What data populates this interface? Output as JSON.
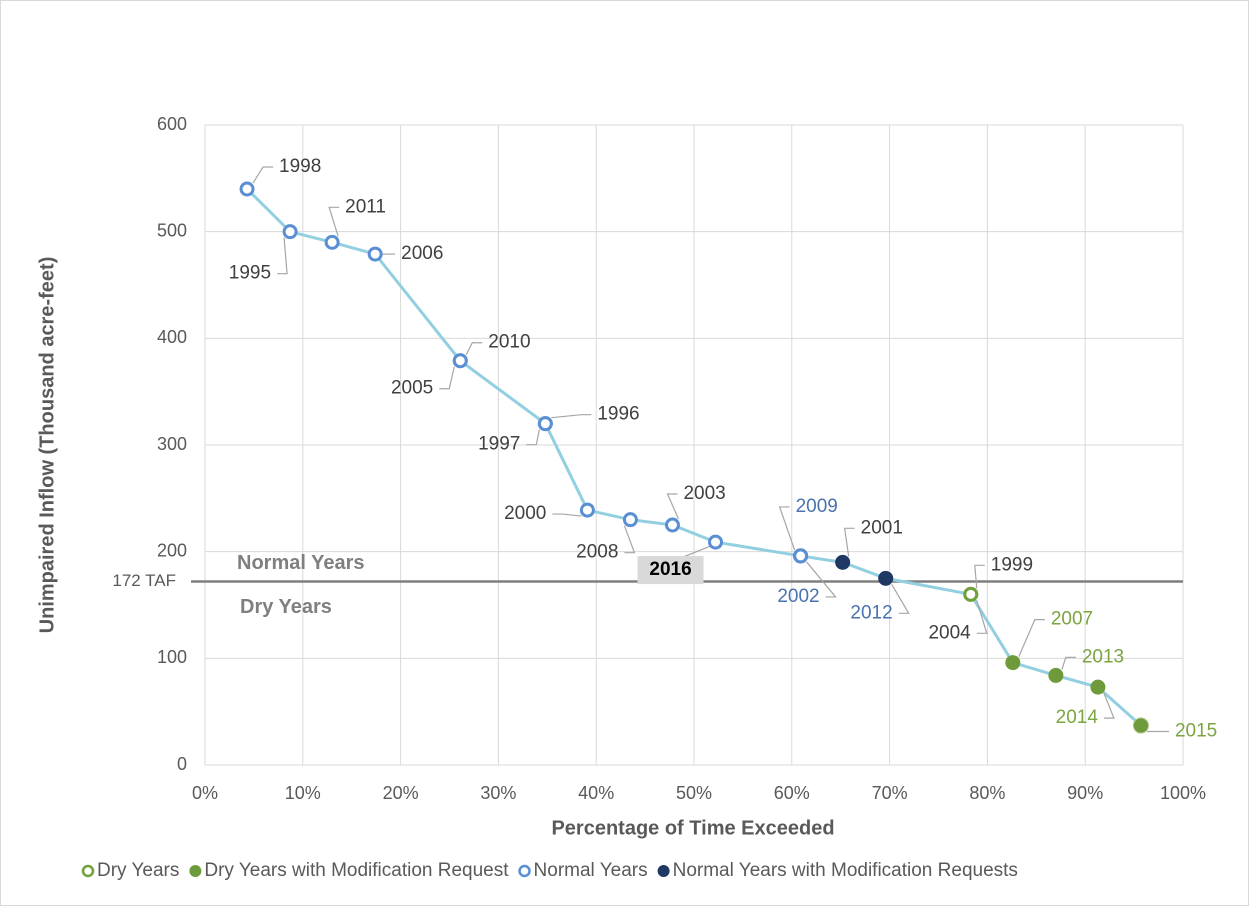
{
  "chart_data": {
    "type": "scatter-line",
    "xlabel": "Percentage of Time Exceeded",
    "ylabel": "Unimpaired Inflow (Thousand  acre-feet)",
    "xlim": [
      0,
      100
    ],
    "ylim": [
      0,
      600
    ],
    "xticks": [
      {
        "value": 0,
        "label": "0%"
      },
      {
        "value": 10,
        "label": "10%"
      },
      {
        "value": 20,
        "label": "20%"
      },
      {
        "value": 30,
        "label": "30%"
      },
      {
        "value": 40,
        "label": "40%"
      },
      {
        "value": 50,
        "label": "50%"
      },
      {
        "value": 60,
        "label": "60%"
      },
      {
        "value": 70,
        "label": "70%"
      },
      {
        "value": 80,
        "label": "80%"
      },
      {
        "value": 90,
        "label": "90%"
      },
      {
        "value": 100,
        "label": "100%"
      }
    ],
    "yticks": [
      0,
      100,
      200,
      300,
      400,
      500,
      600
    ],
    "grid": true,
    "line_color": "#92cfe0",
    "legend": [
      {
        "name": "Dry Years",
        "color": "#70a03c",
        "filled": false
      },
      {
        "name": "Dry Years with Modification Request",
        "color": "#6f9a3b",
        "filled": true
      },
      {
        "name": "Normal Years",
        "color": "#5b8fd4",
        "filled": false
      },
      {
        "name": "Normal Years with Modification Requests",
        "color": "#1f3864",
        "filled": true
      }
    ],
    "labels": [
      "1998",
      "1995",
      "2011",
      "2006",
      "2010",
      "2005",
      "1996",
      "1997",
      "2000",
      "2008",
      "2003",
      "2016",
      "2009",
      "2002",
      "2001",
      "2012",
      "1999",
      "2004",
      "2007",
      "2013",
      "2014",
      "2015"
    ],
    "x": [
      4.3,
      8.7,
      13.0,
      17.4,
      26.1,
      26.1,
      34.8,
      34.8,
      39.1,
      43.5,
      47.8,
      52.2,
      60.9,
      60.9,
      65.2,
      69.6,
      78.3,
      78.3,
      82.6,
      87.0,
      91.3,
      95.7
    ],
    "values": [
      540,
      500,
      490,
      479,
      379,
      379,
      320,
      320,
      239,
      230,
      225,
      209,
      196,
      196,
      190,
      175,
      160,
      160,
      96,
      84,
      73,
      37
    ],
    "groups": [
      2,
      2,
      2,
      2,
      2,
      2,
      2,
      2,
      2,
      2,
      2,
      2,
      3,
      2,
      3,
      3,
      0,
      0,
      1,
      1,
      1,
      1
    ],
    "label_colors": [
      "#404040",
      "#404040",
      "#404040",
      "#404040",
      "#404040",
      "#404040",
      "#404040",
      "#404040",
      "#404040",
      "#404040",
      "#404040",
      "#000000",
      "#4a72b0",
      "#4a72b0",
      "#404040",
      "#4a72b0",
      "#404040",
      "#404040",
      "#7aa53f",
      "#7aa53f",
      "#7aa53f",
      "#7aa53f"
    ],
    "reference": {
      "value": 172,
      "label": "172 TAF",
      "above": "Normal Years",
      "below": "Dry Years",
      "color": "#7f7f7f"
    }
  }
}
